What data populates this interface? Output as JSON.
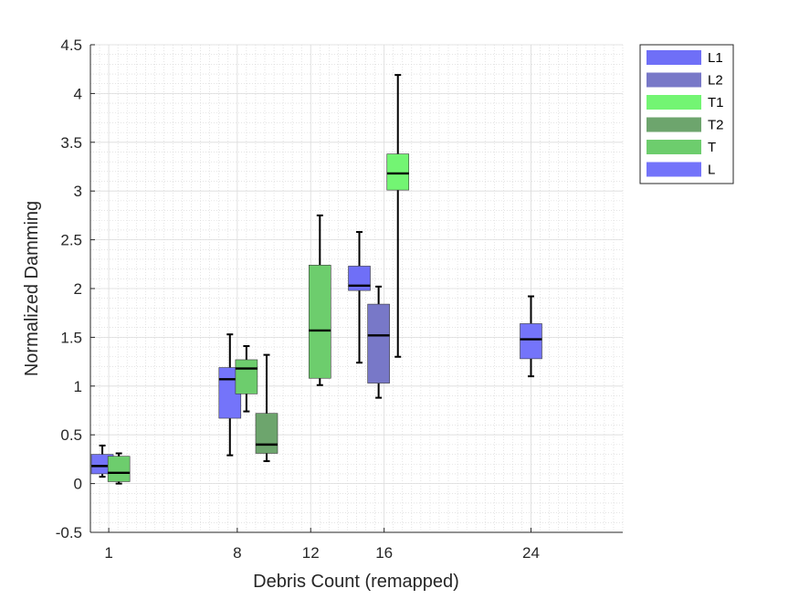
{
  "chart_data": {
    "type": "boxplot",
    "xlabel": "Debris Count (remapped)",
    "ylabel": "Normalized Damming",
    "ylim": [
      -0.5,
      4.5
    ],
    "yticks": [
      -0.5,
      0,
      0.5,
      1,
      1.5,
      2,
      2.5,
      3,
      3.5,
      4,
      4.5
    ],
    "ytick_labels": [
      "-0.5",
      "0",
      "0.5",
      "1",
      "1.5",
      "2",
      "2.5",
      "3",
      "3.5",
      "4",
      "4.5"
    ],
    "xlim": [
      0,
      29
    ],
    "xticks": [
      1,
      8,
      12,
      16,
      24
    ],
    "xtick_labels": [
      "1",
      "8",
      "12",
      "16",
      "24"
    ],
    "grid": true,
    "minor_grid": true,
    "legend_position": "outside-top-right",
    "legend": [
      {
        "name": "L1",
        "color": "#6f6ff7"
      },
      {
        "name": "L2",
        "color": "#7878c8"
      },
      {
        "name": "T1",
        "color": "#73f573"
      },
      {
        "name": "T2",
        "color": "#6da56d"
      },
      {
        "name": "T",
        "color": "#6dcd6d"
      },
      {
        "name": "L",
        "color": "#7474fa"
      }
    ],
    "boxes": [
      {
        "group": "L",
        "x": 0.65,
        "min": 0.07,
        "q1": 0.1,
        "median": 0.18,
        "q3": 0.3,
        "max": 0.39,
        "color": "#7474fa"
      },
      {
        "group": "T",
        "x": 1.55,
        "min": 0.0,
        "q1": 0.02,
        "median": 0.11,
        "q3": 0.28,
        "max": 0.31,
        "color": "#6dcd6d"
      },
      {
        "group": "L",
        "x": 7.6,
        "min": 0.29,
        "q1": 0.67,
        "median": 1.07,
        "q3": 1.19,
        "max": 1.53,
        "color": "#7474fa"
      },
      {
        "group": "T",
        "x": 8.5,
        "min": 0.74,
        "q1": 0.92,
        "median": 1.18,
        "q3": 1.27,
        "max": 1.41,
        "color": "#6dcd6d"
      },
      {
        "group": "T2",
        "x": 9.6,
        "min": 0.23,
        "q1": 0.31,
        "median": 0.4,
        "q3": 0.72,
        "max": 1.32,
        "color": "#6da56d"
      },
      {
        "group": "T",
        "x": 12.5,
        "min": 1.01,
        "q1": 1.08,
        "median": 1.57,
        "q3": 2.24,
        "max": 2.75,
        "color": "#6dcd6d"
      },
      {
        "group": "L1",
        "x": 14.65,
        "min": 1.24,
        "q1": 1.98,
        "median": 2.03,
        "q3": 2.23,
        "max": 2.58,
        "color": "#6f6ff7"
      },
      {
        "group": "L2",
        "x": 15.7,
        "min": 0.88,
        "q1": 1.03,
        "median": 1.52,
        "q3": 1.84,
        "max": 2.02,
        "color": "#7878c8"
      },
      {
        "group": "T1",
        "x": 16.75,
        "min": 1.3,
        "q1": 3.01,
        "median": 3.18,
        "q3": 3.38,
        "max": 4.19,
        "color": "#73f573"
      },
      {
        "group": "L",
        "x": 24.0,
        "min": 1.1,
        "q1": 1.28,
        "median": 1.48,
        "q3": 1.64,
        "max": 1.92,
        "color": "#7474fa"
      }
    ]
  }
}
